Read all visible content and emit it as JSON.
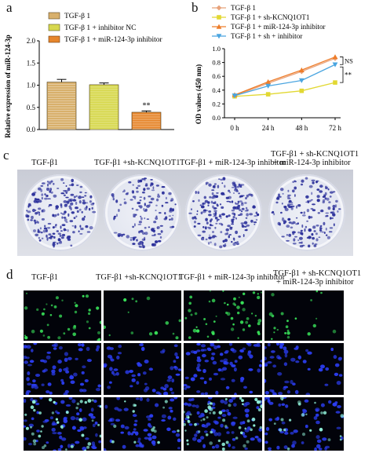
{
  "panels": {
    "a": {
      "letter": "a",
      "legend": [
        "TGF-β 1",
        "TGF-β 1 + inhibitor NC",
        "TGF-β 1 + miR-124-3p inhibitor"
      ],
      "significance": "**"
    },
    "b": {
      "letter": "b",
      "legend": [
        "TGF-β 1",
        "TGF-β 1 + sh-KCNQ1OT1",
        "TGF-β 1 + miR-124-3p inhibitor",
        "TGF-β 1 + sh + inhibitor"
      ],
      "annotations": [
        "NS",
        "**"
      ]
    },
    "c": {
      "letter": "c",
      "labels": [
        "TGF-β1",
        "TGF-β1 +sh-KCNQ1OT1",
        "TGF-β1 + miR-124-3p inhibitor",
        "TGF-β1 + sh-KCNQ1OT1",
        "+ miR-124-3p inhibitor"
      ]
    },
    "d": {
      "letter": "d",
      "labels": [
        "TGF-β1",
        "TGF-β1 +sh-KCNQ1OT1",
        "TGF-β1 + miR-124-3p inhibitor",
        "TGF-β1 + sh-KCNQ1OT1",
        "+ miR-124-3p inhibitor"
      ]
    }
  },
  "colors": {
    "bar1": "#d8b06c",
    "bar2": "#d7d84e",
    "bar3": "#e6862c",
    "line1": "#e8a27a",
    "line2": "#e2d832",
    "line3": "#ee7d2a",
    "line4": "#4aa5e0",
    "dish_colony": "#2a2f9a",
    "stain_nuclei": "#2b3df0",
    "stain_edu": "#39e35a"
  },
  "chart_data": [
    {
      "type": "bar",
      "panel": "a",
      "categories": [
        "TGF-β 1",
        "TGF-β 1 + inhibitor NC",
        "TGF-β 1 + miR-124-3p inhibitor"
      ],
      "values": [
        1.07,
        1.01,
        0.39
      ],
      "errors": [
        0.06,
        0.04,
        0.03
      ],
      "ylabel": "Relative expression of miR-124-3p",
      "ylim": [
        0.0,
        2.0
      ],
      "yticks": [
        "0.0",
        "0.5",
        "1.0",
        "1.5",
        "2.0"
      ],
      "annotations": [
        "**"
      ]
    },
    {
      "type": "line",
      "panel": "b",
      "x": [
        "0 h",
        "24 h",
        "48 h",
        "72 h"
      ],
      "ylabel": "OD values (450 nm)",
      "ylim": [
        0.0,
        1.0
      ],
      "yticks": [
        "0.0",
        "0.2",
        "0.4",
        "0.6",
        "0.8",
        "1.0"
      ],
      "series": [
        {
          "name": "TGF-β 1",
          "values": [
            0.32,
            0.5,
            0.67,
            0.86
          ]
        },
        {
          "name": "TGF-β 1 + sh-KCNQ1OT1",
          "values": [
            0.31,
            0.34,
            0.39,
            0.51
          ]
        },
        {
          "name": "TGF-β 1 + miR-124-3p inhibitor",
          "values": [
            0.33,
            0.52,
            0.69,
            0.88
          ]
        },
        {
          "name": "TGF-β 1 + sh + inhibitor",
          "values": [
            0.32,
            0.46,
            0.54,
            0.77
          ]
        }
      ]
    }
  ]
}
